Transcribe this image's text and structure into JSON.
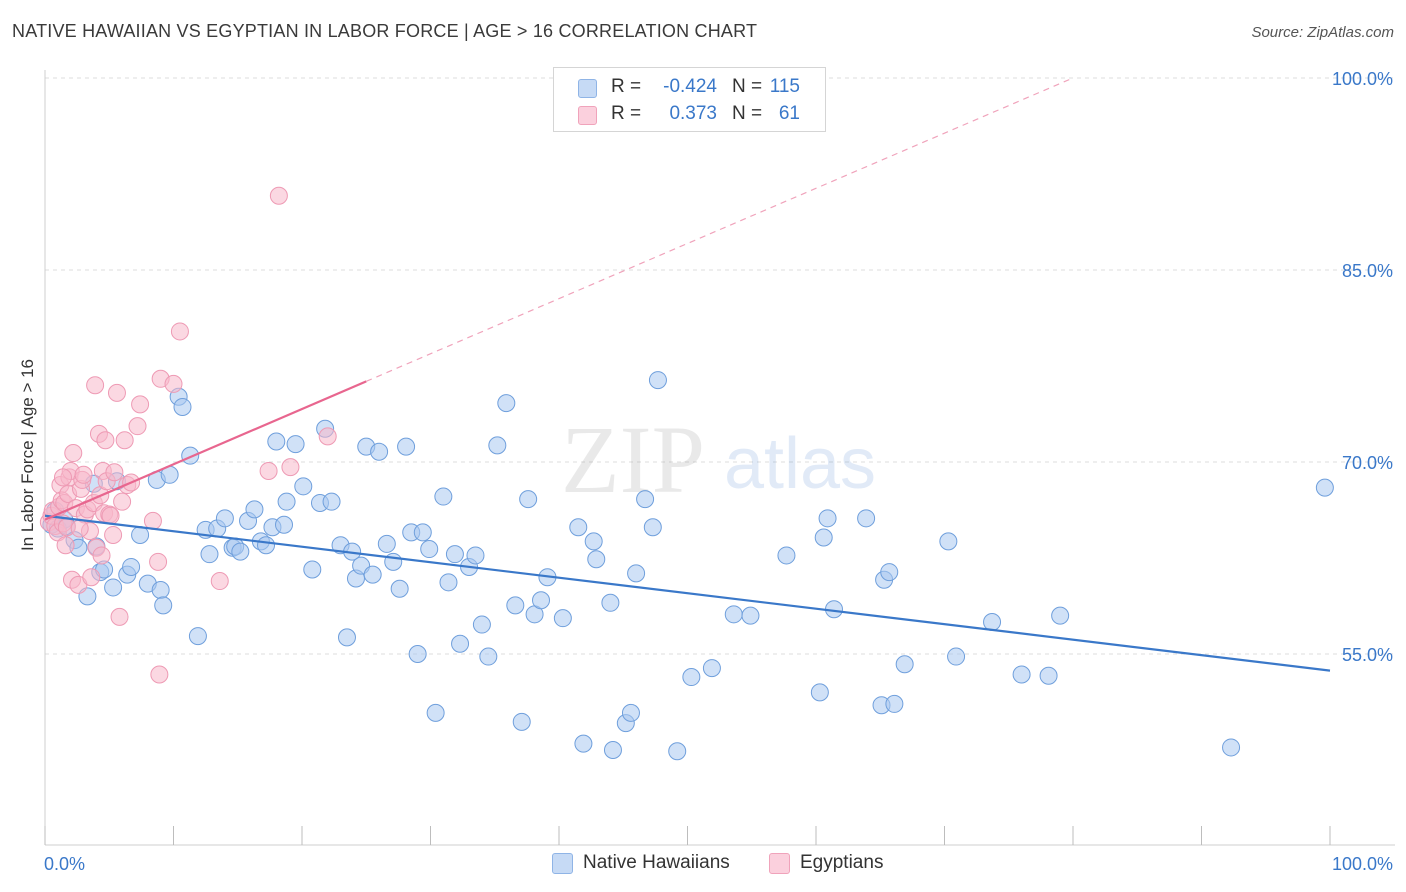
{
  "header": {
    "title": "NATIVE HAWAIIAN VS EGYPTIAN IN LABOR FORCE | AGE > 16 CORRELATION CHART",
    "source": "Source: ZipAtlas.com"
  },
  "watermark": {
    "zip": "ZIP",
    "atlas": "atlas"
  },
  "legend": {
    "rows": [
      {
        "r_label": "R =",
        "r_value": "-0.424",
        "n_label": "N =",
        "n_value": "115",
        "color": "#a9c8f0"
      },
      {
        "r_label": "R =",
        "r_value": "0.373",
        "n_label": "N =",
        "n_value": "61",
        "color": "#f7b8cb"
      }
    ]
  },
  "bottom_legend": {
    "items": [
      {
        "label": "Native Hawaiians",
        "color": "#a9c8f0"
      },
      {
        "label": "Egyptians",
        "color": "#f7b8cb"
      }
    ]
  },
  "chart_data": {
    "type": "scatter",
    "ylabel": "In Labor Force | Age > 16",
    "xlabel": "",
    "xlim": [
      0,
      100
    ],
    "ylim": [
      40,
      101
    ],
    "x_tick_labels": [
      "0.0%",
      "100.0%"
    ],
    "y_ticks": [
      55,
      70,
      85,
      100
    ],
    "y_tick_labels": [
      "55.0%",
      "70.0%",
      "85.0%",
      "100.0%"
    ],
    "grid": true,
    "colors": {
      "blue": "#3a78c9",
      "blue_fill": "#a9c8f0",
      "pink": "#e8668f",
      "pink_fill": "#f7b8cb"
    },
    "series": [
      {
        "name": "Native Hawaiians",
        "trend": {
          "x": [
            0,
            100
          ],
          "y": [
            65.8,
            53.7
          ],
          "style": "solid"
        },
        "points": [
          [
            0.5,
            65.1
          ],
          [
            0.8,
            66.2
          ],
          [
            1.0,
            64.8
          ],
          [
            1.5,
            65.5
          ],
          [
            1.7,
            65.0
          ],
          [
            2.3,
            63.9
          ],
          [
            2.6,
            63.3
          ],
          [
            3.3,
            59.5
          ],
          [
            3.8,
            68.3
          ],
          [
            4.0,
            63.4
          ],
          [
            4.3,
            61.4
          ],
          [
            4.6,
            61.6
          ],
          [
            5.3,
            60.2
          ],
          [
            5.6,
            68.5
          ],
          [
            6.4,
            61.2
          ],
          [
            6.7,
            61.8
          ],
          [
            7.4,
            64.3
          ],
          [
            8.0,
            60.5
          ],
          [
            8.7,
            68.6
          ],
          [
            9.0,
            60.0
          ],
          [
            9.2,
            58.8
          ],
          [
            9.7,
            69.0
          ],
          [
            10.4,
            75.1
          ],
          [
            10.7,
            74.3
          ],
          [
            11.3,
            70.5
          ],
          [
            11.9,
            56.4
          ],
          [
            12.5,
            64.7
          ],
          [
            12.8,
            62.8
          ],
          [
            13.4,
            64.8
          ],
          [
            14.0,
            65.6
          ],
          [
            14.6,
            63.3
          ],
          [
            14.8,
            63.4
          ],
          [
            15.2,
            63.0
          ],
          [
            15.8,
            65.4
          ],
          [
            16.3,
            66.3
          ],
          [
            16.8,
            63.8
          ],
          [
            17.2,
            63.5
          ],
          [
            17.7,
            64.9
          ],
          [
            18.0,
            71.6
          ],
          [
            18.6,
            65.1
          ],
          [
            18.8,
            66.9
          ],
          [
            19.5,
            71.4
          ],
          [
            20.1,
            68.1
          ],
          [
            20.8,
            61.6
          ],
          [
            21.4,
            66.8
          ],
          [
            21.8,
            72.6
          ],
          [
            22.3,
            66.9
          ],
          [
            23.0,
            63.5
          ],
          [
            23.5,
            56.3
          ],
          [
            23.9,
            63.0
          ],
          [
            24.2,
            60.9
          ],
          [
            24.6,
            61.9
          ],
          [
            25.0,
            71.2
          ],
          [
            25.5,
            61.2
          ],
          [
            26.0,
            70.8
          ],
          [
            26.6,
            63.6
          ],
          [
            27.1,
            62.2
          ],
          [
            27.6,
            60.1
          ],
          [
            28.1,
            71.2
          ],
          [
            28.5,
            64.5
          ],
          [
            29.0,
            55.0
          ],
          [
            29.4,
            64.5
          ],
          [
            29.9,
            63.2
          ],
          [
            30.4,
            50.4
          ],
          [
            31.0,
            67.3
          ],
          [
            31.4,
            60.6
          ],
          [
            31.9,
            62.8
          ],
          [
            32.3,
            55.8
          ],
          [
            33.0,
            61.8
          ],
          [
            33.5,
            62.7
          ],
          [
            34.0,
            57.3
          ],
          [
            34.5,
            54.8
          ],
          [
            35.2,
            71.3
          ],
          [
            35.9,
            74.6
          ],
          [
            36.6,
            58.8
          ],
          [
            37.1,
            49.7
          ],
          [
            37.6,
            67.1
          ],
          [
            38.1,
            58.1
          ],
          [
            38.6,
            59.2
          ],
          [
            39.1,
            61.0
          ],
          [
            40.3,
            57.8
          ],
          [
            41.5,
            64.9
          ],
          [
            41.9,
            48.0
          ],
          [
            42.7,
            63.8
          ],
          [
            42.9,
            62.4
          ],
          [
            44.0,
            59.0
          ],
          [
            44.2,
            47.5
          ],
          [
            45.2,
            49.6
          ],
          [
            45.6,
            50.4
          ],
          [
            46.0,
            61.3
          ],
          [
            46.7,
            67.1
          ],
          [
            47.3,
            64.9
          ],
          [
            47.7,
            76.4
          ],
          [
            49.2,
            47.4
          ],
          [
            50.3,
            53.2
          ],
          [
            51.9,
            53.9
          ],
          [
            53.6,
            58.1
          ],
          [
            54.9,
            58.0
          ],
          [
            57.7,
            62.7
          ],
          [
            60.3,
            52.0
          ],
          [
            60.6,
            64.1
          ],
          [
            60.9,
            65.6
          ],
          [
            61.4,
            58.5
          ],
          [
            63.9,
            65.6
          ],
          [
            65.1,
            51.0
          ],
          [
            65.3,
            60.8
          ],
          [
            65.7,
            61.4
          ],
          [
            66.1,
            51.1
          ],
          [
            66.9,
            54.2
          ],
          [
            70.3,
            63.8
          ],
          [
            70.9,
            54.8
          ],
          [
            73.7,
            57.5
          ],
          [
            76.0,
            53.4
          ],
          [
            78.1,
            53.3
          ],
          [
            79.0,
            58.0
          ],
          [
            92.3,
            47.7
          ],
          [
            99.6,
            68.0
          ]
        ]
      },
      {
        "name": "Egyptians",
        "trend": {
          "x": [
            0,
            25
          ],
          "y": [
            65.5,
            76.3
          ],
          "style": "solid",
          "extended": {
            "x": [
              25,
              80
            ],
            "y": [
              76.3,
              100
            ]
          }
        },
        "points": [
          [
            0.3,
            65.3
          ],
          [
            0.5,
            65.8
          ],
          [
            0.6,
            66.2
          ],
          [
            0.8,
            65.0
          ],
          [
            1.0,
            64.5
          ],
          [
            1.1,
            66.5
          ],
          [
            1.2,
            68.2
          ],
          [
            1.3,
            67.0
          ],
          [
            1.4,
            65.2
          ],
          [
            1.5,
            66.8
          ],
          [
            1.6,
            63.5
          ],
          [
            1.7,
            64.9
          ],
          [
            1.8,
            67.5
          ],
          [
            1.9,
            68.8
          ],
          [
            2.0,
            69.3
          ],
          [
            2.1,
            60.8
          ],
          [
            2.2,
            70.7
          ],
          [
            2.4,
            66.4
          ],
          [
            2.6,
            60.4
          ],
          [
            2.8,
            67.9
          ],
          [
            2.9,
            68.6
          ],
          [
            3.0,
            69.0
          ],
          [
            3.1,
            65.9
          ],
          [
            3.3,
            66.3
          ],
          [
            3.5,
            64.6
          ],
          [
            3.6,
            61.0
          ],
          [
            3.8,
            66.8
          ],
          [
            3.9,
            76.0
          ],
          [
            4.0,
            63.3
          ],
          [
            4.2,
            72.2
          ],
          [
            4.3,
            67.4
          ],
          [
            4.4,
            62.7
          ],
          [
            4.5,
            69.3
          ],
          [
            4.6,
            66.0
          ],
          [
            4.7,
            71.7
          ],
          [
            4.8,
            68.5
          ],
          [
            5.0,
            65.9
          ],
          [
            5.1,
            65.8
          ],
          [
            5.3,
            64.3
          ],
          [
            5.4,
            69.2
          ],
          [
            5.6,
            75.4
          ],
          [
            5.8,
            57.9
          ],
          [
            6.0,
            66.9
          ],
          [
            6.2,
            71.7
          ],
          [
            6.4,
            68.2
          ],
          [
            6.7,
            68.4
          ],
          [
            7.2,
            72.8
          ],
          [
            7.4,
            74.5
          ],
          [
            8.4,
            65.4
          ],
          [
            8.8,
            62.2
          ],
          [
            8.9,
            53.4
          ],
          [
            9.0,
            76.5
          ],
          [
            10.0,
            76.1
          ],
          [
            10.5,
            80.2
          ],
          [
            13.6,
            60.7
          ],
          [
            17.4,
            69.3
          ],
          [
            18.2,
            90.8
          ],
          [
            19.1,
            69.6
          ],
          [
            22.0,
            72.0
          ],
          [
            1.4,
            68.8
          ],
          [
            2.7,
            64.8
          ]
        ]
      }
    ]
  }
}
